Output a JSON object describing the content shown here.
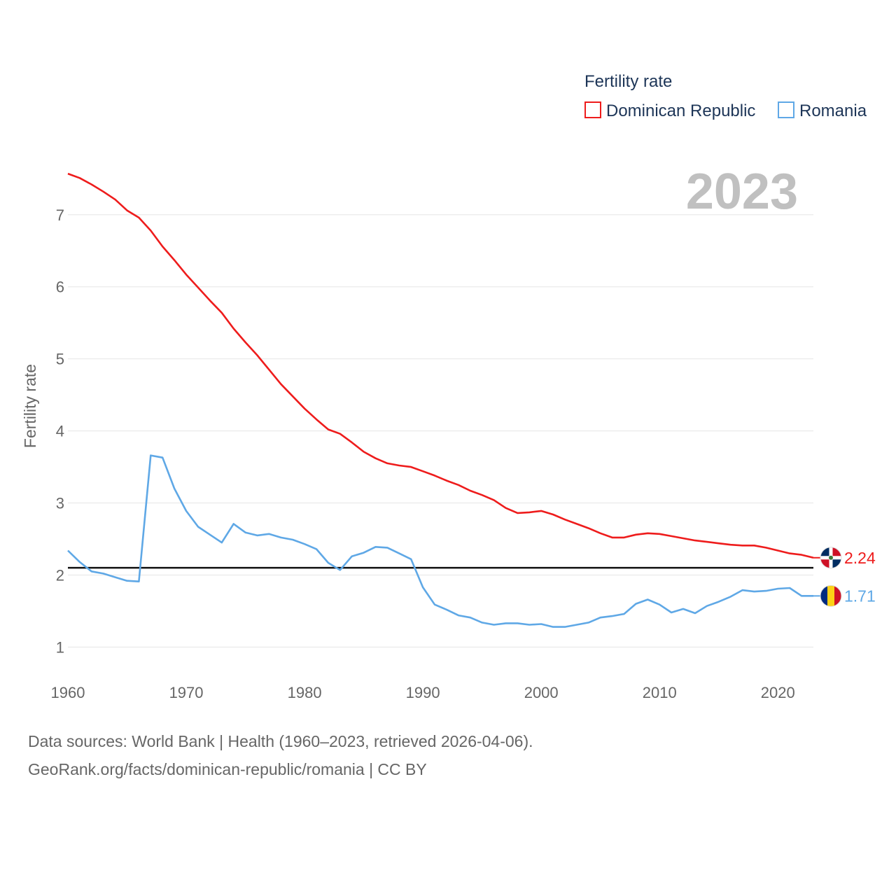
{
  "colors": {
    "dominican_republic": "#ee1c1c",
    "romania": "#5fa8e6",
    "reference_line": "#111111",
    "grid": "#e6e6e6",
    "year_label": "#c0c0c0"
  },
  "year_label": "2023",
  "legend": {
    "title": "Fertility rate",
    "items": [
      {
        "label": "Dominican Republic",
        "color": "#ee1c1c"
      },
      {
        "label": "Romania",
        "color": "#5fa8e6"
      }
    ]
  },
  "end_labels": {
    "dominican_republic": "2.24",
    "romania": "1.71"
  },
  "flag_icons": [
    "dominican-republic-flag-icon",
    "romania-flag-icon"
  ],
  "source": {
    "line1": "Data sources: World Bank | Health (1960–2023, retrieved 2026-04-06).",
    "line2": "GeoRank.org/facts/dominican-republic/romania | CC BY"
  },
  "chart_data": {
    "type": "line",
    "title": "Fertility rate",
    "xlabel": "",
    "ylabel": "Fertility rate",
    "xlim": [
      1960,
      2023
    ],
    "ylim": [
      0.8,
      7.6
    ],
    "xticks": [
      1960,
      1970,
      1980,
      1990,
      2000,
      2010,
      2020
    ],
    "yticks": [
      1,
      2,
      3,
      4,
      5,
      6,
      7
    ],
    "grid": true,
    "legend_position": "top-right",
    "reference_line": {
      "y": 2.1,
      "color": "#111111"
    },
    "x": [
      1960,
      1961,
      1962,
      1963,
      1964,
      1965,
      1966,
      1967,
      1968,
      1969,
      1970,
      1971,
      1972,
      1973,
      1974,
      1975,
      1976,
      1977,
      1978,
      1979,
      1980,
      1981,
      1982,
      1983,
      1984,
      1985,
      1986,
      1987,
      1988,
      1989,
      1990,
      1991,
      1992,
      1993,
      1994,
      1995,
      1996,
      1997,
      1998,
      1999,
      2000,
      2001,
      2002,
      2003,
      2004,
      2005,
      2006,
      2007,
      2008,
      2009,
      2010,
      2011,
      2012,
      2013,
      2014,
      2015,
      2016,
      2017,
      2018,
      2019,
      2020,
      2021,
      2022,
      2023
    ],
    "series": [
      {
        "name": "Dominican Republic",
        "color": "#ee1c1c",
        "values": [
          7.57,
          7.51,
          7.42,
          7.32,
          7.21,
          7.06,
          6.96,
          6.78,
          6.56,
          6.37,
          6.17,
          5.99,
          5.81,
          5.64,
          5.42,
          5.23,
          5.05,
          4.85,
          4.65,
          4.48,
          4.31,
          4.16,
          4.02,
          3.96,
          3.84,
          3.71,
          3.62,
          3.55,
          3.52,
          3.5,
          3.44,
          3.38,
          3.31,
          3.25,
          3.17,
          3.11,
          3.04,
          2.93,
          2.86,
          2.87,
          2.89,
          2.84,
          2.77,
          2.71,
          2.65,
          2.58,
          2.52,
          2.52,
          2.56,
          2.58,
          2.57,
          2.54,
          2.51,
          2.48,
          2.46,
          2.44,
          2.42,
          2.41,
          2.41,
          2.38,
          2.34,
          2.3,
          2.28,
          2.24
        ]
      },
      {
        "name": "Romania",
        "color": "#5fa8e6",
        "values": [
          2.34,
          2.18,
          2.05,
          2.02,
          1.97,
          1.92,
          1.91,
          3.66,
          3.63,
          3.2,
          2.89,
          2.67,
          2.56,
          2.45,
          2.71,
          2.59,
          2.55,
          2.57,
          2.52,
          2.49,
          2.43,
          2.36,
          2.17,
          2.07,
          2.26,
          2.31,
          2.39,
          2.38,
          2.3,
          2.22,
          1.83,
          1.59,
          1.52,
          1.44,
          1.41,
          1.34,
          1.31,
          1.33,
          1.33,
          1.31,
          1.32,
          1.28,
          1.28,
          1.31,
          1.34,
          1.41,
          1.43,
          1.46,
          1.6,
          1.66,
          1.59,
          1.48,
          1.53,
          1.47,
          1.57,
          1.63,
          1.7,
          1.79,
          1.77,
          1.78,
          1.81,
          1.82,
          1.71,
          1.71
        ]
      }
    ]
  }
}
